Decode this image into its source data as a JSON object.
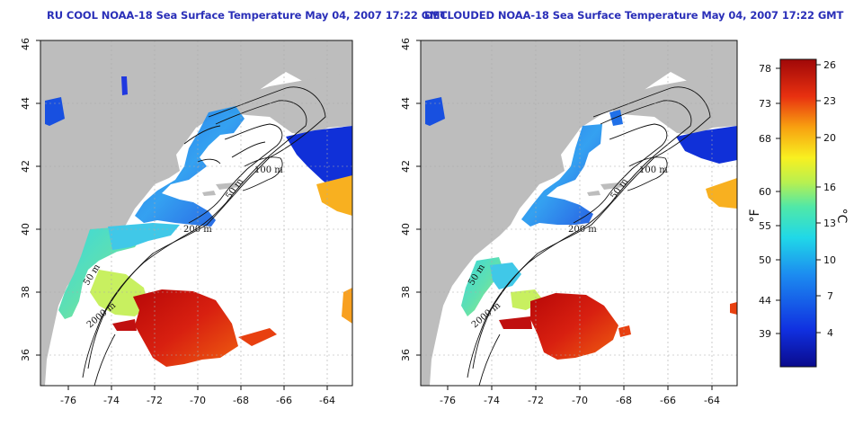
{
  "titles": {
    "left": "RU COOL NOAA-18 Sea Surface Temperature May 04, 2007 17:22 GMT",
    "right": "DECLOUDED NOAA-18 Sea Surface Temperature May 04, 2007 17:22 GMT"
  },
  "axes": {
    "lon_ticks": [
      "-76",
      "-74",
      "-72",
      "-70",
      "-68",
      "-66",
      "-64"
    ],
    "lat_ticks": [
      "36",
      "38",
      "40",
      "42",
      "44",
      "46"
    ]
  },
  "contour_labels": [
    "100 m",
    "50 m",
    "200 m",
    "50 m",
    "2000 m"
  ],
  "colorbar": {
    "fahrenheit_unit": "°F",
    "celsius_unit": "°C",
    "fahrenheit_ticks": [
      "78",
      "73",
      "68",
      "60",
      "55",
      "50",
      "44",
      "39"
    ],
    "celsius_ticks": [
      "26",
      "23",
      "20",
      "16",
      "13",
      "10",
      "7",
      "4"
    ]
  },
  "colors": {
    "land": "#bdbdbd",
    "title": "#2a2fb8",
    "warm_core": "#c01010",
    "cold_shelf": "#1a3fd8"
  }
}
